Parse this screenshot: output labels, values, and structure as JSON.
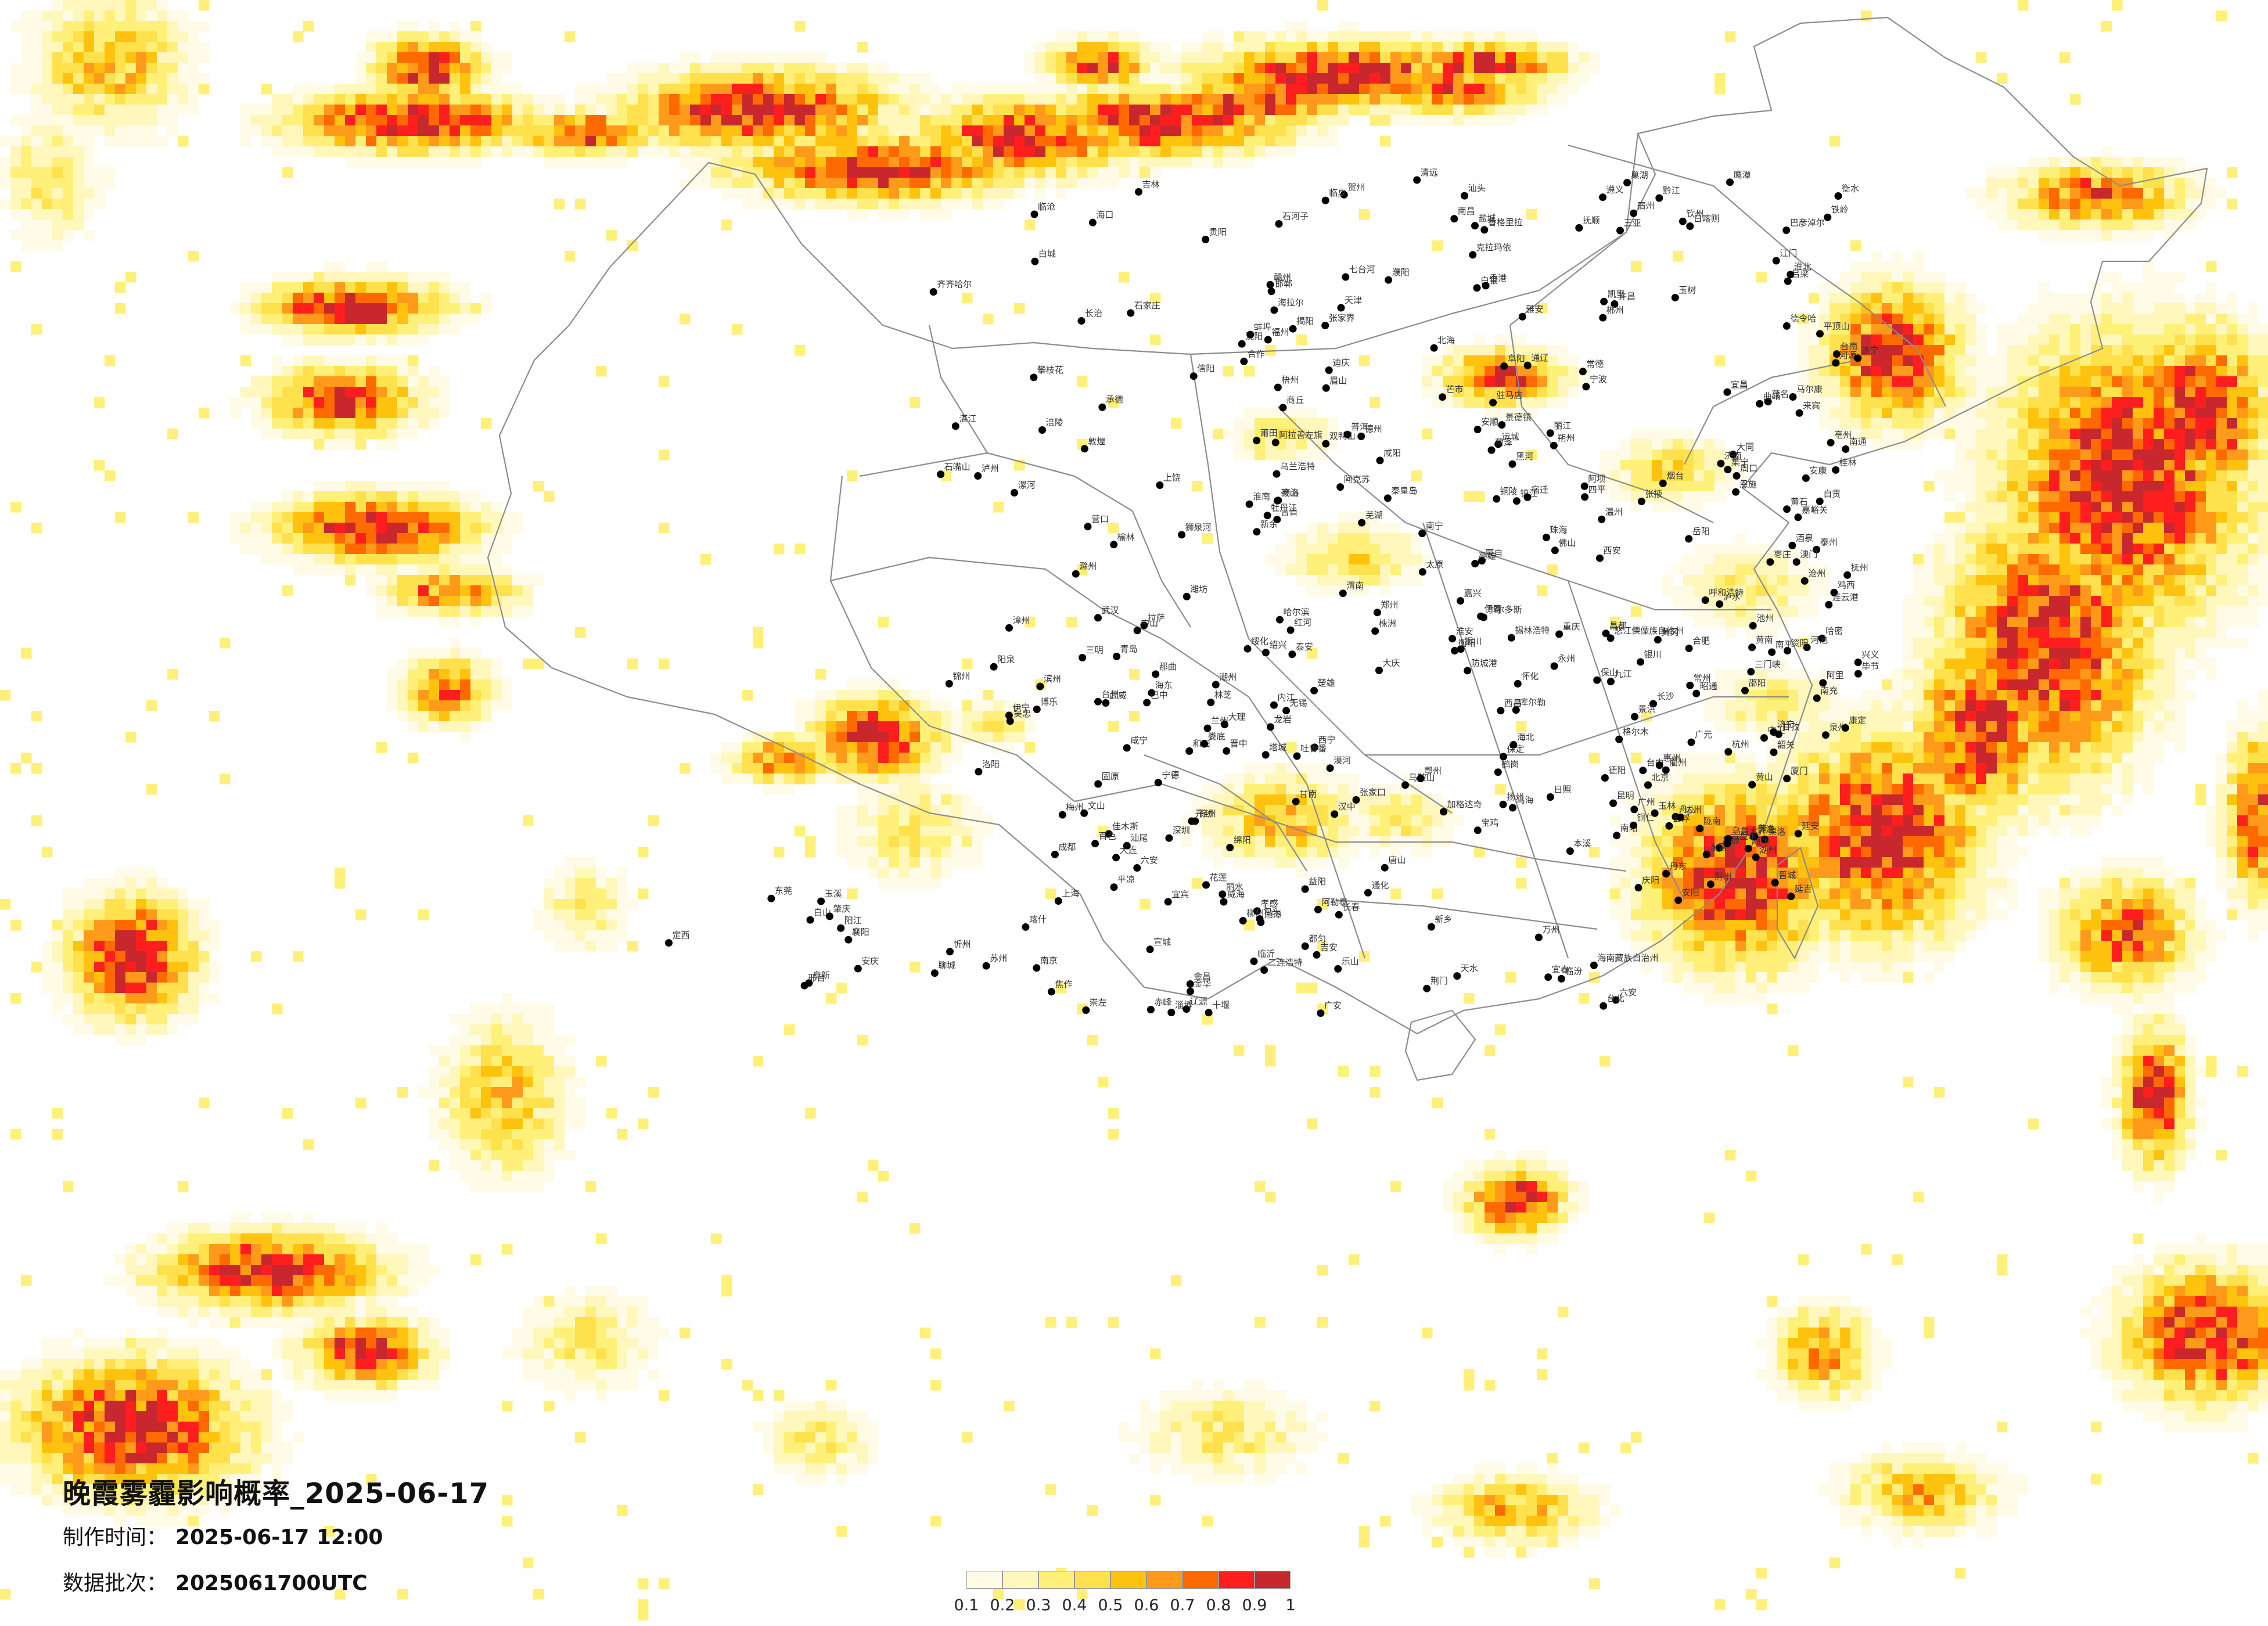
{
  "title": "晚霞雾霾影响概率_2025-06-17",
  "produced": {
    "label": "制作时间：",
    "value": "2025-06-17 12:00"
  },
  "batch": {
    "label": "数据批次：",
    "value": "2025061700UTC"
  },
  "legend": {
    "ticks": [
      "0.1",
      "0.2",
      "0.3",
      "0.4",
      "0.5",
      "0.6",
      "0.7",
      "0.8",
      "0.9",
      "1"
    ],
    "colors": [
      "#fffbe6",
      "#fff7bc",
      "#fff07a",
      "#ffe14d",
      "#ffc20e",
      "#ff9a1a",
      "#ff6a00",
      "#ff1e1e",
      "#c8282d"
    ]
  },
  "colors": {
    "border": "#8c8c8c",
    "city_marker": "#000000",
    "background": "#ffffff"
  },
  "cities": [
    "加格达奇",
    "海拉尔",
    "漠河",
    "黑河",
    "伊春",
    "鹤岗",
    "佳木斯",
    "双鸭山",
    "七台河",
    "鸡西",
    "齐齐哈尔",
    "绥化",
    "大庆",
    "哈尔滨",
    "乌兰浩特",
    "白城",
    "牡丹江",
    "松原",
    "长春",
    "吉林",
    "通辽",
    "锡林浩特",
    "四平",
    "辽源",
    "通化",
    "白山",
    "延吉",
    "赤峰",
    "阜新",
    "沈阳",
    "铁岭",
    "抚顺",
    "本溪",
    "丹东",
    "锦州",
    "鞍山",
    "营口",
    "大连",
    "承德",
    "张家口",
    "北京",
    "天津",
    "秦皇岛",
    "唐山",
    "保定",
    "石家庄",
    "邢台",
    "邯郸",
    "衡水",
    "沧州",
    "大同",
    "朔州",
    "忻州",
    "太原",
    "阳泉",
    "吕梁",
    "晋中",
    "长治",
    "临汾",
    "运城",
    "晋城",
    "呼和浩特",
    "包头",
    "鄂尔多斯",
    "乌海",
    "巴彦淖尔",
    "二连浩特",
    "集宁",
    "银川",
    "石嘴山",
    "吴忠",
    "中卫",
    "固原",
    "榆林",
    "延安",
    "铜川",
    "宝鸡",
    "咸阳",
    "西安",
    "渭南",
    "汉中",
    "安康",
    "商洛",
    "兰州",
    "白银",
    "天水",
    "平凉",
    "庆阳",
    "定西",
    "陇南",
    "武威",
    "张掖",
    "金昌",
    "酒泉",
    "嘉峪关",
    "敦煌",
    "西宁",
    "海东",
    "格尔木",
    "德令哈",
    "玉树",
    "果洛",
    "乌鲁木齐",
    "克拉玛依",
    "石河子",
    "吐鲁番",
    "哈密",
    "库尔勒",
    "阿克苏",
    "喀什",
    "和田",
    "伊宁",
    "塔城",
    "阿勒泰",
    "博乐",
    "拉萨",
    "日喀则",
    "林芝",
    "昌都",
    "那曲",
    "阿里",
    "狮泉河",
    "济南",
    "青岛",
    "烟台",
    "威海",
    "潍坊",
    "淄博",
    "临沂",
    "济宁",
    "泰安",
    "德州",
    "聊城",
    "菏泽",
    "枣庄",
    "日照",
    "东营",
    "滨州",
    "郑州",
    "开封",
    "洛阳",
    "平顶山",
    "安阳",
    "新乡",
    "焦作",
    "濮阳",
    "许昌",
    "漯河",
    "三门峡",
    "南阳",
    "商丘",
    "信阳",
    "周口",
    "驻马店",
    "南京",
    "无锡",
    "徐州",
    "常州",
    "苏州",
    "南通",
    "连云港",
    "淮安",
    "盐城",
    "扬州",
    "镇江",
    "泰州",
    "宿迁",
    "上海",
    "杭州",
    "宁波",
    "温州",
    "嘉兴",
    "湖州",
    "绍兴",
    "金华",
    "衢州",
    "舟山",
    "台州",
    "丽水",
    "合肥",
    "芜湖",
    "蚌埠",
    "淮南",
    "马鞍山",
    "淮北",
    "铜陵",
    "安庆",
    "黄山",
    "阜阳",
    "宿州",
    "滁州",
    "六安",
    "宣城",
    "池州",
    "亳州",
    "武汉",
    "黄石",
    "十堰",
    "宜昌",
    "襄阳",
    "鄂州",
    "荆门",
    "孝感",
    "荆州",
    "黄冈",
    "咸宁",
    "随州",
    "恩施",
    "长沙",
    "株洲",
    "湘潭",
    "衡阳",
    "邵阳",
    "岳阳",
    "常德",
    "张家界",
    "益阳",
    "郴州",
    "永州",
    "怀化",
    "娄底",
    "吉首",
    "南昌",
    "景德镇",
    "萍乡",
    "九江",
    "新余",
    "鹰潭",
    "赣州",
    "吉安",
    "宜春",
    "抚州",
    "上饶",
    "福州",
    "厦门",
    "莆田",
    "三明",
    "泉州",
    "漳州",
    "南平",
    "龙岩",
    "宁德",
    "台北",
    "台中",
    "台南",
    "高雄",
    "花莲",
    "广州",
    "深圳",
    "珠海",
    "汕头",
    "韶关",
    "佛山",
    "江门",
    "湛江",
    "茂名",
    "肇庆",
    "惠州",
    "梅州",
    "汕尾",
    "河源",
    "阳江",
    "清远",
    "东莞",
    "中山",
    "潮州",
    "揭阳",
    "云浮",
    "香港",
    "澳门",
    "南宁",
    "柳州",
    "桂林",
    "梧州",
    "北海",
    "防城港",
    "钦州",
    "贵港",
    "玉林",
    "百色",
    "贺州",
    "河池",
    "来宾",
    "崇左",
    "海口",
    "三亚",
    "成都",
    "自贡",
    "攀枝花",
    "泸州",
    "德阳",
    "绵阳",
    "广元",
    "遂宁",
    "内江",
    "乐山",
    "南充",
    "眉山",
    "宜宾",
    "广安",
    "达州",
    "雅安",
    "巴中",
    "资阳",
    "马尔康",
    "康定",
    "西昌",
    "重庆",
    "万州",
    "涪陵",
    "黔江",
    "贵阳",
    "六盘水",
    "遵义",
    "安顺",
    "毕节",
    "铜仁",
    "凯里",
    "都匀",
    "兴义",
    "昆明",
    "曲靖",
    "玉溪",
    "保山",
    "昭通",
    "丽江",
    "普洱",
    "临沧",
    "楚雄",
    "蒙自",
    "文山",
    "景洪",
    "大理",
    "芒市",
    "泸水",
    "香格里拉",
    "怒江傈僳族自治州",
    "迪庆",
    "临夏",
    "合作",
    "阿拉善左旗",
    "甘南",
    "海北",
    "黄南",
    "海南藏族自治州",
    "红河",
    "六安",
    "巢湖",
    "阿坝",
    "甘孜"
  ]
}
